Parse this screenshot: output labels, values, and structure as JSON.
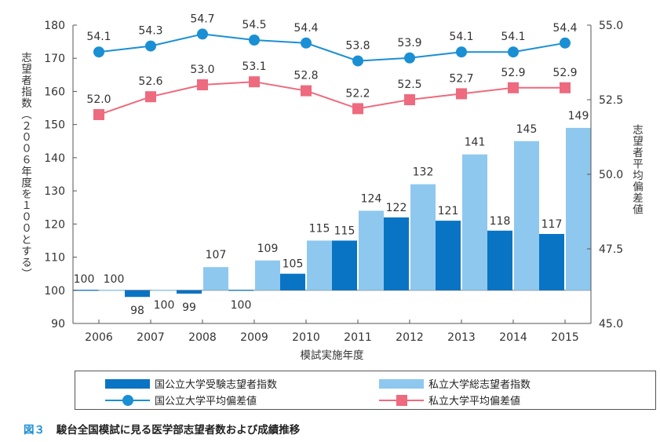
{
  "chart_data": {
    "type": "bar+line",
    "categories": [
      "2006",
      "2007",
      "2008",
      "2009",
      "2010",
      "2011",
      "2012",
      "2013",
      "2014",
      "2015"
    ],
    "xlabel": "模試実施年度",
    "ylabel_left": "志望者指数（２００６年度を１００とする）",
    "ylabel_right": "志望者平均偏差値",
    "y_left": {
      "range": [
        90,
        180
      ],
      "ticks": [
        90,
        100,
        110,
        120,
        130,
        140,
        150,
        160,
        170,
        180
      ]
    },
    "y_right": {
      "range": [
        45.0,
        55.0
      ],
      "ticks": [
        "45.0",
        "47.5",
        "50.0",
        "52.5",
        "55.0"
      ]
    },
    "bar_base": 100,
    "series": [
      {
        "name": "国公立大学受験志望者指数",
        "type": "bar",
        "axis": "left",
        "color": "#0a74c4",
        "values": [
          100,
          98,
          99,
          100,
          105,
          115,
          122,
          121,
          118,
          117
        ]
      },
      {
        "name": "私立大学総志望者指数",
        "type": "bar",
        "axis": "left",
        "color": "#8ec8ee",
        "values": [
          100,
          100,
          107,
          109,
          115,
          124,
          132,
          141,
          145,
          149
        ]
      },
      {
        "name": "国公立大学平均偏差値",
        "type": "line",
        "axis": "right",
        "color": "#1a8fd4",
        "marker": "circle",
        "values": [
          54.1,
          54.3,
          54.7,
          54.5,
          54.4,
          53.8,
          53.9,
          54.1,
          54.1,
          54.4
        ]
      },
      {
        "name": "私立大学平均偏差値",
        "type": "line",
        "axis": "right",
        "color": "#ee6a7e",
        "marker": "square",
        "values": [
          52.0,
          52.6,
          53.0,
          53.1,
          52.8,
          52.2,
          52.5,
          52.7,
          52.9,
          52.9
        ]
      }
    ],
    "legend_position": "bottom",
    "grid": false
  },
  "caption": {
    "figure": "図３",
    "text": "駿台全国模試に見る医学部志望者数および成績推移"
  }
}
